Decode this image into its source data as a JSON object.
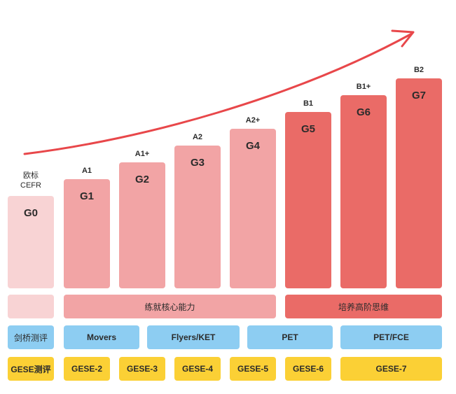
{
  "colors": {
    "level_pale": "#f8d3d4",
    "level_light": "#f2a4a5",
    "level_strong": "#ea6b67",
    "exam_blue": "#8dcdf2",
    "gese_yellow": "#fbd035",
    "arrow": "#e8474a"
  },
  "cefr_header": [
    "欧标",
    "CEFR"
  ],
  "levels": [
    {
      "grade": "G0",
      "cefr": ""
    },
    {
      "grade": "G1",
      "cefr": "A1"
    },
    {
      "grade": "G2",
      "cefr": "A1+"
    },
    {
      "grade": "G3",
      "cefr": "A2"
    },
    {
      "grade": "G4",
      "cefr": "A2+"
    },
    {
      "grade": "G5",
      "cefr": "B1"
    },
    {
      "grade": "G6",
      "cefr": "B1+"
    },
    {
      "grade": "G7",
      "cefr": "B2"
    }
  ],
  "ability_row": {
    "core": "练就核心能力",
    "advanced": "培养高阶思维"
  },
  "cambridge_row": {
    "header": "剑桥测评",
    "items": [
      "Movers",
      "Flyers/KET",
      "PET",
      "PET/FCE"
    ]
  },
  "gese_row": {
    "header": "GESE测评",
    "items": [
      "GESE-2",
      "GESE-3",
      "GESE-4",
      "GESE-5",
      "GESE-6",
      "GESE-7"
    ]
  }
}
